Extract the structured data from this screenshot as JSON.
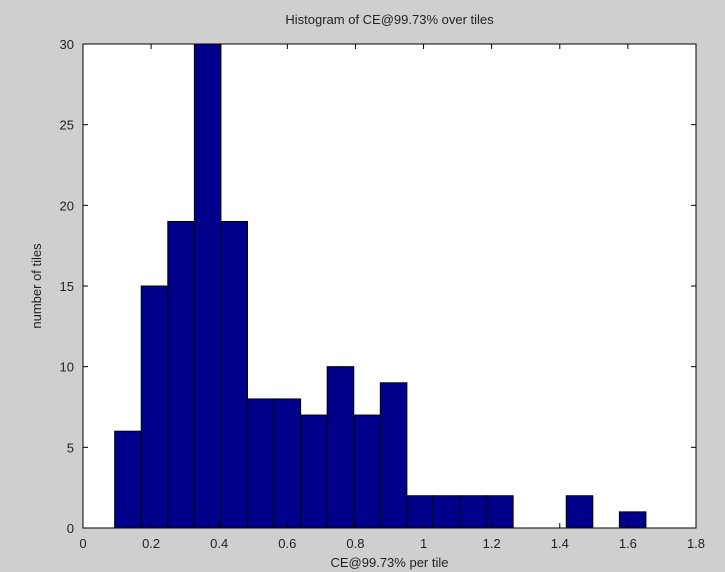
{
  "chart_data": {
    "type": "bar",
    "title": "Histogram of CE@99.73% over tiles",
    "xlabel": "CE@99.73% per tile",
    "ylabel": "number of tiles",
    "xlim": [
      0,
      1.8
    ],
    "ylim": [
      0,
      30
    ],
    "x_ticks": [
      "0",
      "0.2",
      "0.4",
      "0.6",
      "0.8",
      "1",
      "1.2",
      "1.4",
      "1.6",
      "1.8"
    ],
    "y_ticks": [
      "0",
      "5",
      "10",
      "15",
      "20",
      "25",
      "30"
    ],
    "bin_width": 0.078,
    "bin_centers": [
      0.132,
      0.21,
      0.288,
      0.366,
      0.444,
      0.522,
      0.6,
      0.678,
      0.756,
      0.834,
      0.912,
      0.99,
      1.068,
      1.146,
      1.224,
      1.302,
      1.38,
      1.458,
      1.536,
      1.614
    ],
    "values": [
      6,
      15,
      19,
      30,
      19,
      8,
      8,
      7,
      10,
      7,
      9,
      2,
      2,
      2,
      2,
      0,
      0,
      2,
      0,
      1
    ],
    "grid": false,
    "colors": {
      "bar_fill": "#00008b",
      "bar_edge": "#000000",
      "axes_background": "#ffffff",
      "figure_background": "#cfcfcf"
    }
  }
}
